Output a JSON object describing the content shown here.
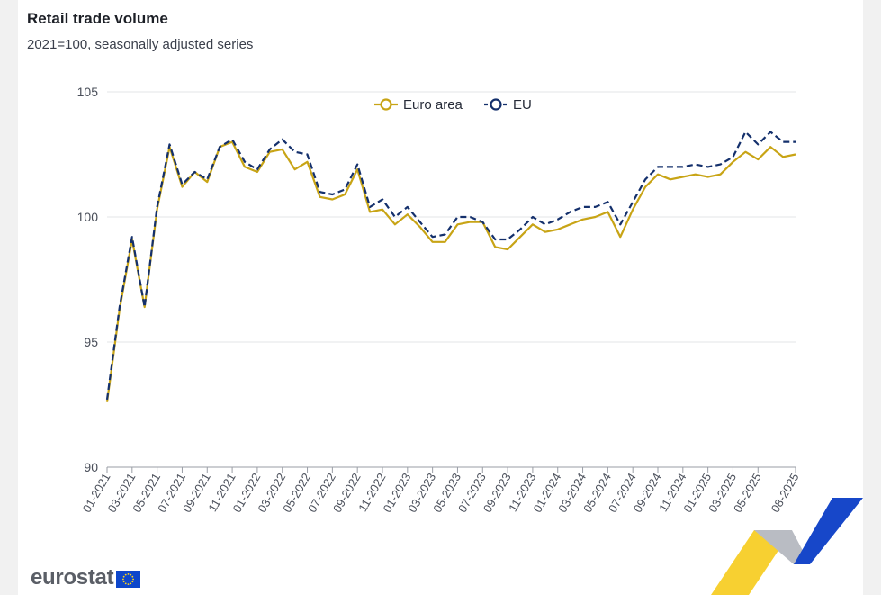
{
  "chart_data": {
    "type": "line",
    "title": "Retail trade volume",
    "subtitle": "2021=100, seasonally adjusted series",
    "x": [
      "01-2021",
      "02-2021",
      "03-2021",
      "04-2021",
      "05-2021",
      "06-2021",
      "07-2021",
      "08-2021",
      "09-2021",
      "10-2021",
      "11-2021",
      "12-2021",
      "01-2022",
      "02-2022",
      "03-2022",
      "04-2022",
      "05-2022",
      "06-2022",
      "07-2022",
      "08-2022",
      "09-2022",
      "10-2022",
      "11-2022",
      "12-2022",
      "01-2023",
      "02-2023",
      "03-2023",
      "04-2023",
      "05-2023",
      "06-2023",
      "07-2023",
      "08-2023",
      "09-2023",
      "10-2023",
      "11-2023",
      "12-2023",
      "01-2024",
      "02-2024",
      "03-2024",
      "04-2024",
      "05-2024",
      "06-2024",
      "07-2024",
      "08-2024",
      "09-2024",
      "10-2024",
      "11-2024",
      "12-2024",
      "01-2025",
      "02-2025",
      "03-2025",
      "04-2025",
      "05-2025",
      "06-2025",
      "07-2025",
      "08-2025"
    ],
    "x_tick_labels": [
      "01-2021",
      "03-2021",
      "05-2021",
      "07-2021",
      "09-2021",
      "11-2021",
      "01-2022",
      "03-2022",
      "05-2022",
      "07-2022",
      "09-2022",
      "11-2022",
      "01-2023",
      "03-2023",
      "05-2023",
      "07-2023",
      "09-2023",
      "11-2023",
      "01-2024",
      "03-2024",
      "05-2024",
      "07-2024",
      "09-2024",
      "11-2024",
      "01-2025",
      "03-2025",
      "05-2025",
      "08-2025"
    ],
    "ylim": [
      90,
      105
    ],
    "y_ticks": [
      90,
      95,
      100,
      105
    ],
    "grid": true,
    "legend_position": "top-center",
    "series": [
      {
        "name": "Euro area",
        "color": "#c8a415",
        "style": "solid",
        "values": [
          92.6,
          96.3,
          99.1,
          96.4,
          100.3,
          102.8,
          101.2,
          101.8,
          101.4,
          102.8,
          103.0,
          102.0,
          101.8,
          102.6,
          102.7,
          101.9,
          102.2,
          100.8,
          100.7,
          100.9,
          101.9,
          100.2,
          100.3,
          99.7,
          100.1,
          99.6,
          99.0,
          99.0,
          99.7,
          99.8,
          99.8,
          98.8,
          98.7,
          99.2,
          99.7,
          99.4,
          99.5,
          99.7,
          99.9,
          100.0,
          100.2,
          99.2,
          100.3,
          101.2,
          101.7,
          101.5,
          101.6,
          101.7,
          101.6,
          101.7,
          102.2,
          102.6,
          102.3,
          102.8,
          102.4,
          102.5
        ]
      },
      {
        "name": "EU",
        "color": "#14306c",
        "style": "dashed",
        "values": [
          92.7,
          96.4,
          99.2,
          96.4,
          100.4,
          102.9,
          101.3,
          101.8,
          101.5,
          102.8,
          103.1,
          102.2,
          101.9,
          102.7,
          103.1,
          102.6,
          102.5,
          101.0,
          100.9,
          101.1,
          102.1,
          100.4,
          100.7,
          100.0,
          100.4,
          99.8,
          99.2,
          99.3,
          100.0,
          100.0,
          99.8,
          99.1,
          99.1,
          99.5,
          100.0,
          99.7,
          99.9,
          100.2,
          100.4,
          100.4,
          100.6,
          99.7,
          100.6,
          101.5,
          102.0,
          102.0,
          102.0,
          102.1,
          102.0,
          102.1,
          102.4,
          103.4,
          102.9,
          103.4,
          103.0,
          103.0
        ]
      }
    ]
  },
  "footer": {
    "logo_text": "eurostat"
  }
}
